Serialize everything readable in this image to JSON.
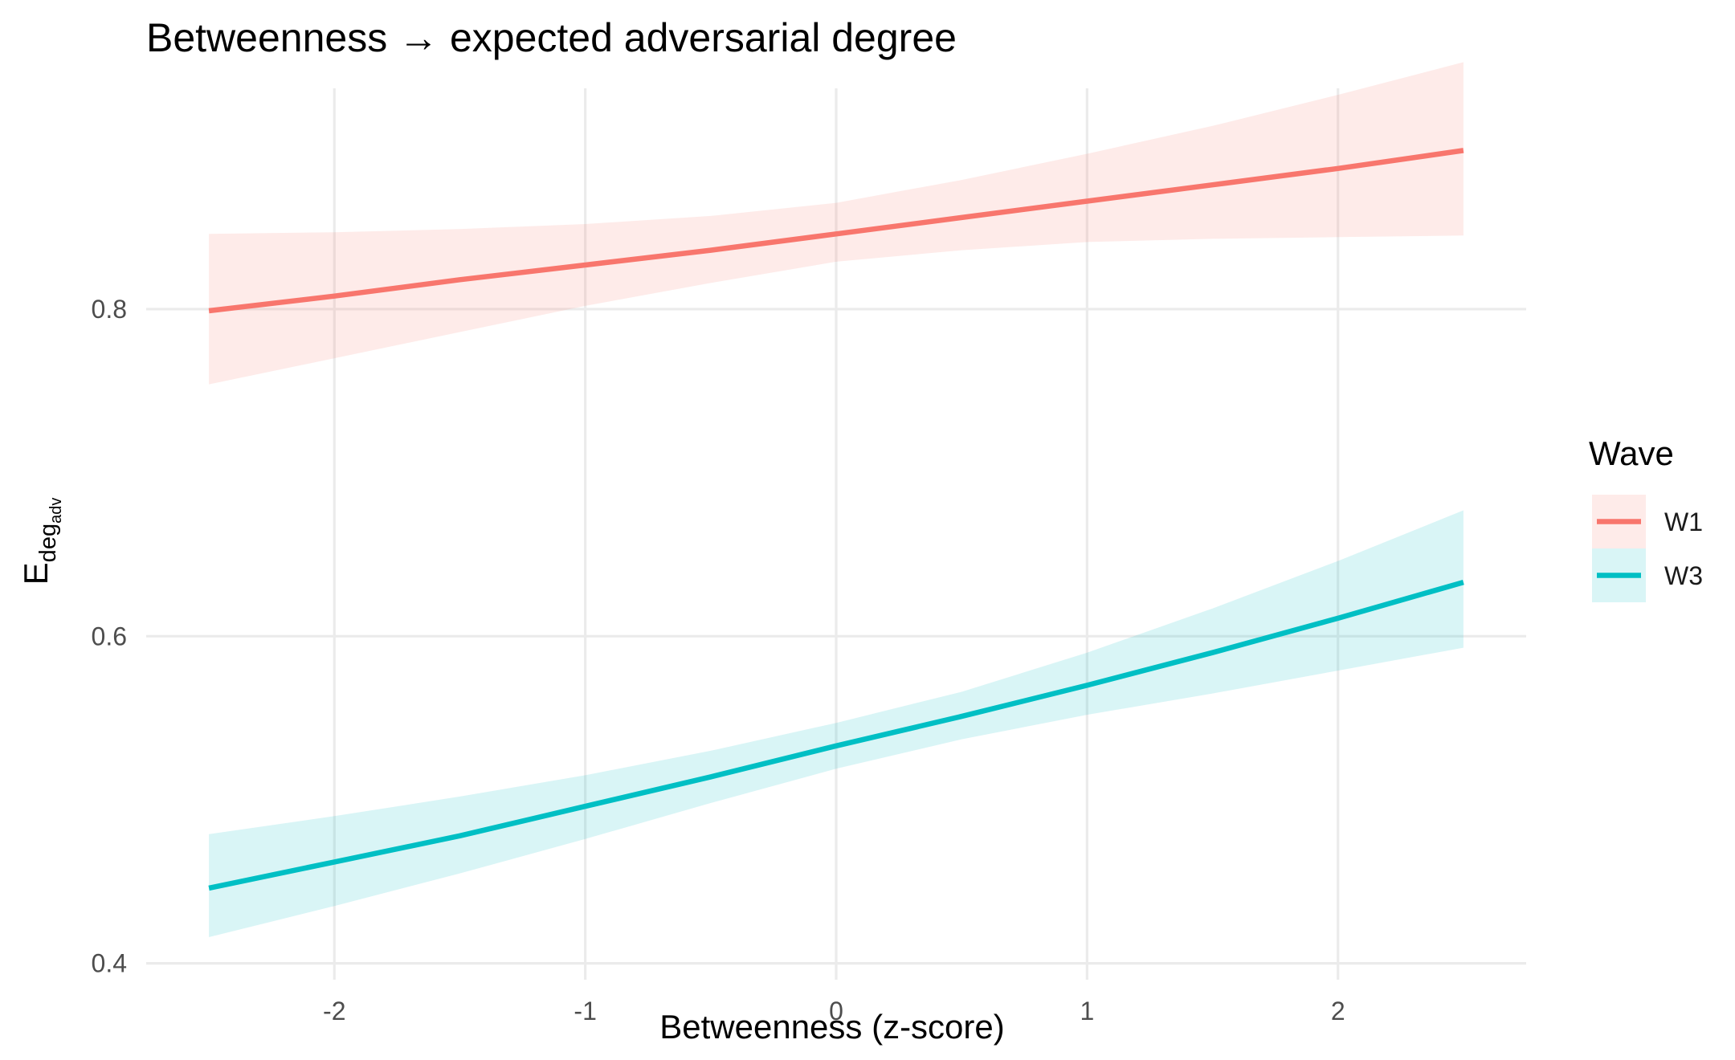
{
  "chart_data": {
    "type": "line",
    "title": "Betweenness → expected adversarial degree",
    "xlabel": "Betweenness (z-score)",
    "ylabel": {
      "main": "E",
      "sub": "deg",
      "subsub": "adv"
    },
    "xlim": [
      -2.75,
      2.75
    ],
    "ylim": [
      0.39,
      0.935
    ],
    "x_ticks": [
      -2,
      -1,
      0,
      1,
      2
    ],
    "x_tick_labels": [
      "-2",
      "-1",
      "0",
      "1",
      "2"
    ],
    "y_ticks": [
      0.4,
      0.6,
      0.8
    ],
    "y_tick_labels": [
      "0.4",
      "0.6",
      "0.8"
    ],
    "grid": true,
    "legend": {
      "title": "Wave",
      "position": "right"
    },
    "series": [
      {
        "name": "W1",
        "color": "#F8766D",
        "x": [
          -2.5,
          -2.0,
          -1.5,
          -1.0,
          -0.5,
          0.0,
          0.5,
          1.0,
          1.5,
          2.0,
          2.5
        ],
        "y": [
          0.799,
          0.808,
          0.818,
          0.827,
          0.836,
          0.846,
          0.856,
          0.866,
          0.876,
          0.886,
          0.897
        ],
        "lower": [
          0.754,
          0.77,
          0.786,
          0.802,
          0.816,
          0.829,
          0.836,
          0.841,
          0.843,
          0.844,
          0.845
        ],
        "upper": [
          0.846,
          0.847,
          0.849,
          0.852,
          0.857,
          0.865,
          0.879,
          0.895,
          0.912,
          0.931,
          0.951
        ]
      },
      {
        "name": "W3",
        "color": "#00BFC4",
        "x": [
          -2.5,
          -2.0,
          -1.5,
          -1.0,
          -0.5,
          0.0,
          0.5,
          1.0,
          1.5,
          2.0,
          2.5
        ],
        "y": [
          0.446,
          0.462,
          0.478,
          0.496,
          0.514,
          0.533,
          0.551,
          0.57,
          0.59,
          0.611,
          0.633
        ],
        "lower": [
          0.416,
          0.435,
          0.455,
          0.476,
          0.498,
          0.519,
          0.537,
          0.552,
          0.565,
          0.579,
          0.593
        ],
        "upper": [
          0.479,
          0.49,
          0.502,
          0.515,
          0.53,
          0.547,
          0.566,
          0.59,
          0.617,
          0.646,
          0.677
        ]
      }
    ]
  }
}
